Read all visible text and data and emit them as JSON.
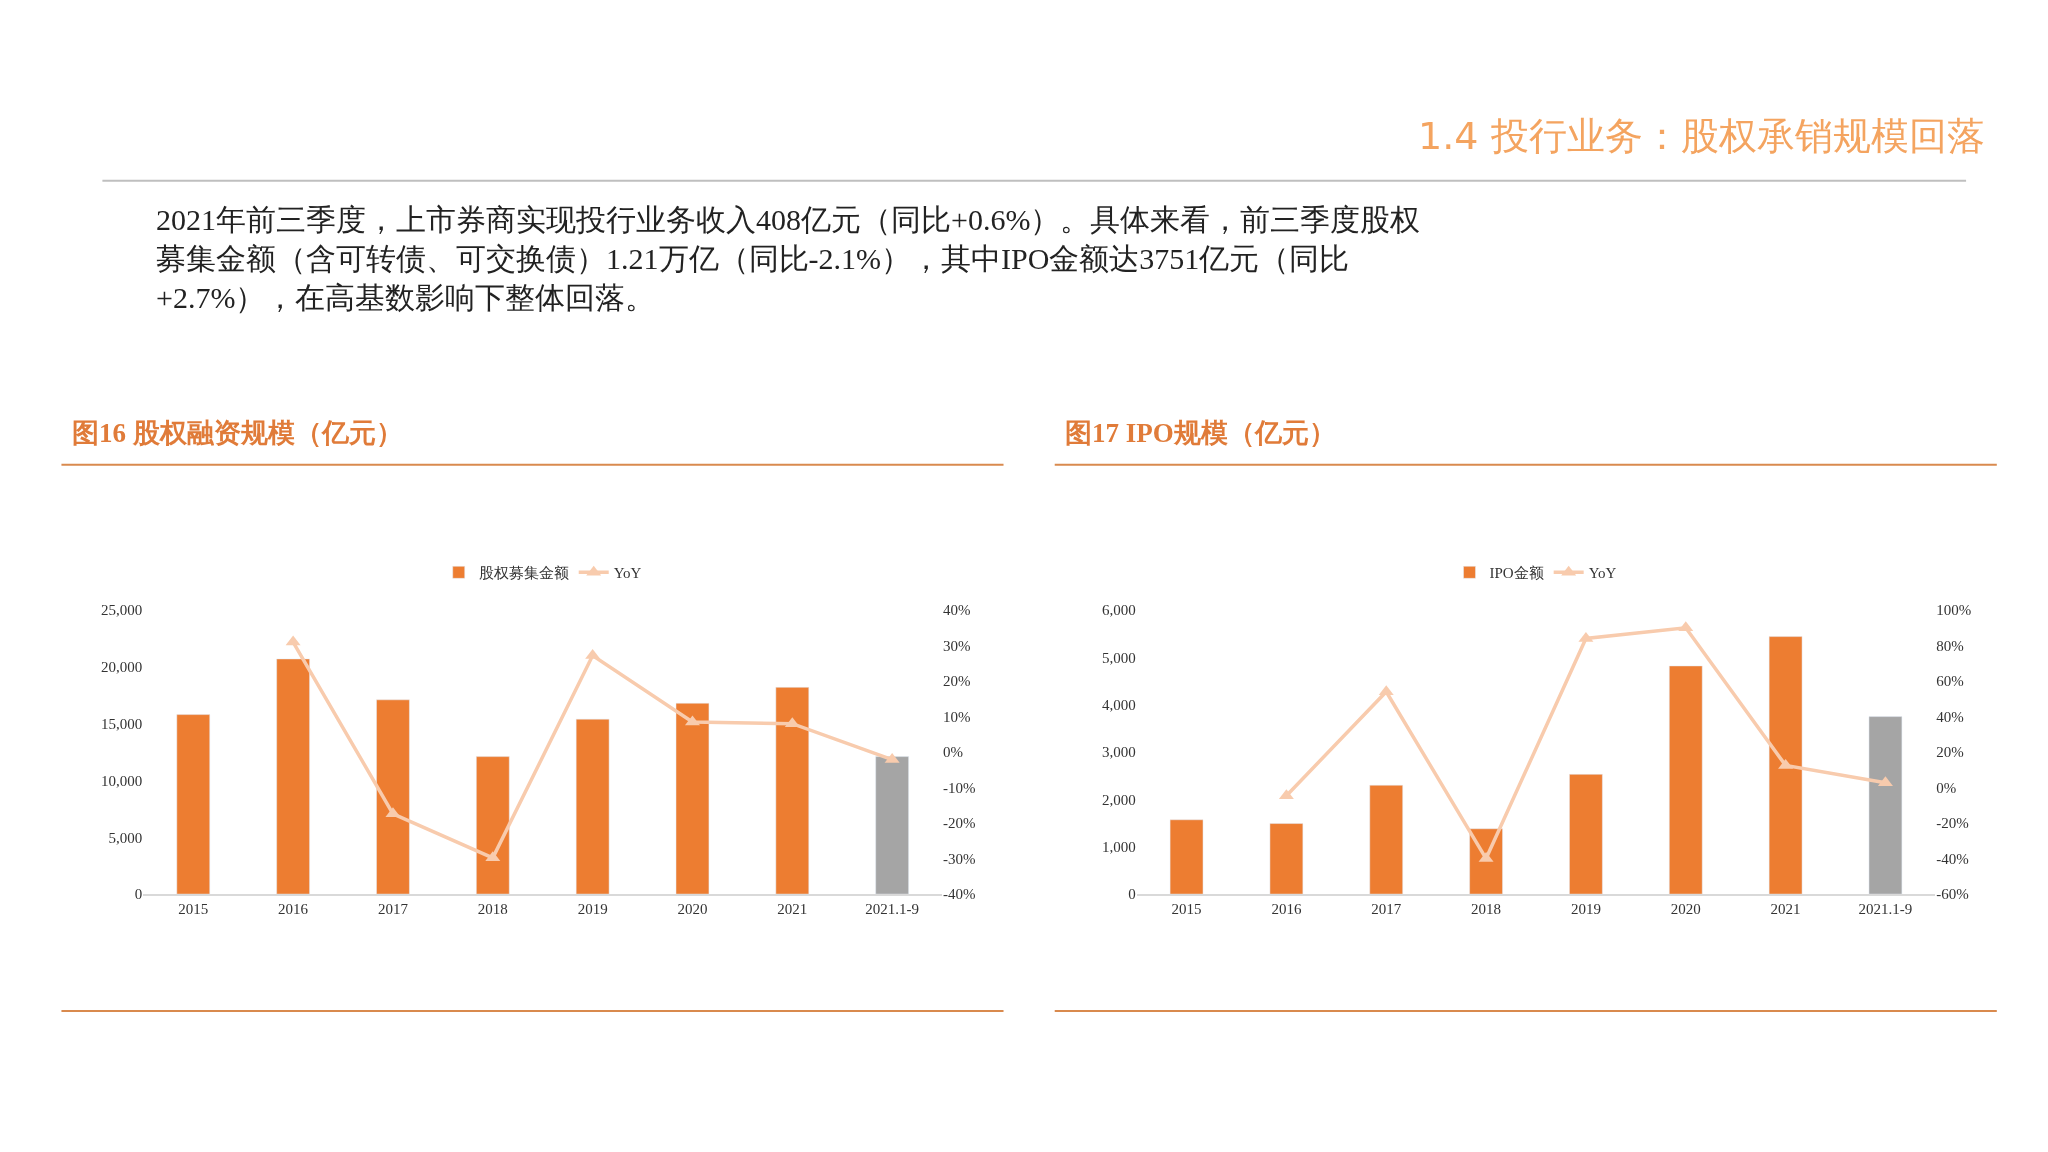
{
  "chart_data": [
    {
      "type": "other",
      "title": "1.4 投行业务：股权承销规模回落",
      "annotations": [
        "2021年前三季度，上市券商实现投行业务收入408亿元（同比+0.6%）。具体来看，前三季度股权募集金额（含可转债、可交换债）1.21万亿（同比-2.1%），其中IPO金额达3751亿元（同比+2.7%），在高基数影响下整体回落。"
      ]
    },
    {
      "type": "bar",
      "title": "图16 股权融资规模（亿元）",
      "categories": [
        "2015",
        "2016",
        "2017",
        "2018",
        "2019",
        "2020",
        "2021",
        "2021.1-9"
      ],
      "series": [
        {
          "name": "股权募集金额",
          "type": "bar",
          "colors": [
            "#ed7d31",
            "#ed7d31",
            "#ed7d31",
            "#ed7d31",
            "#ed7d31",
            "#ed7d31",
            "#ed7d31",
            "#a5a5a5"
          ],
          "values": [
            15800,
            20700,
            17100,
            12100,
            15400,
            16800,
            18200,
            12100
          ]
        },
        {
          "name": "YoY",
          "type": "line",
          "axis": "y2",
          "color": "#f8cbad",
          "marker": "triangle",
          "values": [
            null,
            31,
            -17.4,
            -29.8,
            27.2,
            8.5,
            8,
            -2.1
          ]
        }
      ],
      "ylim": [
        0,
        25000
      ],
      "yticks": [
        0,
        {
          "value": 5000,
          "label": "5,000"
        },
        {
          "value": 10000,
          "label": "10,000"
        },
        {
          "value": 15000,
          "label": "15,000"
        },
        {
          "value": 20000,
          "label": "20,000"
        },
        {
          "value": 25000,
          "label": "25,000"
        }
      ],
      "y2lim": [
        -40,
        40
      ],
      "y2ticks": [
        {
          "value": -40,
          "label": "-40%"
        },
        {
          "value": -30,
          "label": "-30%"
        },
        {
          "value": -20,
          "label": "-20%"
        },
        {
          "value": -10,
          "label": "-10%"
        },
        {
          "value": 0,
          "label": "0%"
        },
        {
          "value": 10,
          "label": "10%"
        },
        {
          "value": 20,
          "label": "20%"
        },
        {
          "value": 30,
          "label": "30%"
        },
        {
          "value": 40,
          "label": "40%"
        }
      ],
      "legend": "top"
    },
    {
      "type": "bar",
      "title": "图17 IPO规模（亿元）",
      "categories": [
        "2015",
        "2016",
        "2017",
        "2018",
        "2019",
        "2020",
        "2021",
        "2021.1-9"
      ],
      "series": [
        {
          "name": "IPO金额",
          "type": "bar",
          "colors": [
            "#ed7d31",
            "#ed7d31",
            "#ed7d31",
            "#ed7d31",
            "#ed7d31",
            "#ed7d31",
            "#ed7d31",
            "#a5a5a5"
          ],
          "values": [
            1570,
            1490,
            2300,
            1380,
            2530,
            4820,
            5440,
            3750
          ]
        },
        {
          "name": "YoY",
          "type": "line",
          "axis": "y2",
          "color": "#f8cbad",
          "marker": "triangle",
          "values": [
            null,
            -4.6,
            54,
            -40,
            84,
            90,
            12.5,
            2.7
          ]
        }
      ],
      "ylim": [
        0,
        6000
      ],
      "yticks": [
        0,
        {
          "value": 1000,
          "label": "1,000"
        },
        {
          "value": 2000,
          "label": "2,000"
        },
        {
          "value": 3000,
          "label": "3,000"
        },
        {
          "value": 4000,
          "label": "4,000"
        },
        {
          "value": 5000,
          "label": "5,000"
        },
        {
          "value": 6000,
          "label": "6,000"
        }
      ],
      "y2lim": [
        -60,
        100
      ],
      "y2ticks": [
        {
          "value": -60,
          "label": "-60%"
        },
        {
          "value": -40,
          "label": "-40%"
        },
        {
          "value": -20,
          "label": "-20%"
        },
        {
          "value": 0,
          "label": "0%"
        },
        {
          "value": 20,
          "label": "20%"
        },
        {
          "value": 40,
          "label": "40%"
        },
        {
          "value": 60,
          "label": "60%"
        },
        {
          "value": 80,
          "label": "80%"
        },
        {
          "value": 100,
          "label": "100%"
        }
      ],
      "legend": "top"
    }
  ]
}
